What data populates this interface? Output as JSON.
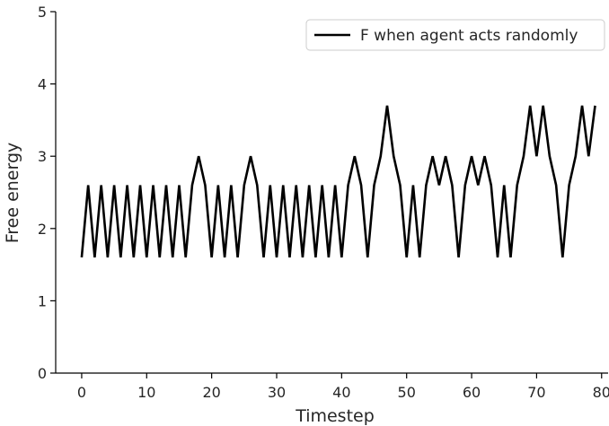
{
  "chart_data": {
    "type": "line",
    "xlabel": "Timestep",
    "ylabel": "Free energy",
    "xlim": [
      -4,
      81
    ],
    "ylim": [
      0,
      5
    ],
    "x_ticks": [
      0,
      10,
      20,
      30,
      40,
      50,
      60,
      70,
      80
    ],
    "y_ticks": [
      0,
      1,
      2,
      3,
      4,
      5
    ],
    "grid": false,
    "legend_position": "upper-right",
    "series": [
      {
        "name": "F when agent acts randomly",
        "color": "#000000",
        "x": [
          0,
          1,
          2,
          3,
          4,
          5,
          6,
          7,
          8,
          9,
          10,
          11,
          12,
          13,
          14,
          15,
          16,
          17,
          18,
          19,
          20,
          21,
          22,
          23,
          24,
          25,
          26,
          27,
          28,
          29,
          30,
          31,
          32,
          33,
          34,
          35,
          36,
          37,
          38,
          39,
          40,
          41,
          42,
          43,
          44,
          45,
          46,
          47,
          48,
          49,
          50,
          51,
          52,
          53,
          54,
          55,
          56,
          57,
          58,
          59,
          60,
          61,
          62,
          63,
          64,
          65,
          66,
          67,
          68,
          69,
          70,
          71,
          72,
          73,
          74,
          75,
          76,
          77,
          78,
          79
        ],
        "y": [
          1.6,
          2.6,
          1.6,
          2.6,
          1.6,
          2.6,
          1.6,
          2.6,
          1.6,
          2.6,
          1.6,
          2.6,
          1.6,
          2.6,
          1.6,
          2.6,
          1.6,
          2.6,
          3.0,
          2.6,
          1.6,
          2.6,
          1.6,
          2.6,
          1.6,
          2.6,
          3.0,
          2.6,
          1.6,
          2.6,
          1.6,
          2.6,
          1.6,
          2.6,
          1.6,
          2.6,
          1.6,
          2.6,
          1.6,
          2.6,
          1.6,
          2.6,
          3.0,
          2.6,
          1.6,
          2.6,
          3.0,
          3.7,
          3.0,
          2.6,
          1.6,
          2.6,
          1.6,
          2.6,
          3.0,
          2.6,
          3.0,
          2.6,
          1.6,
          2.6,
          3.0,
          2.6,
          3.0,
          2.6,
          1.6,
          2.6,
          1.6,
          2.6,
          3.0,
          3.7,
          3.0,
          3.7,
          3.0,
          2.6,
          1.6,
          2.6,
          3.0,
          3.7,
          3.0,
          3.7
        ]
      }
    ]
  }
}
